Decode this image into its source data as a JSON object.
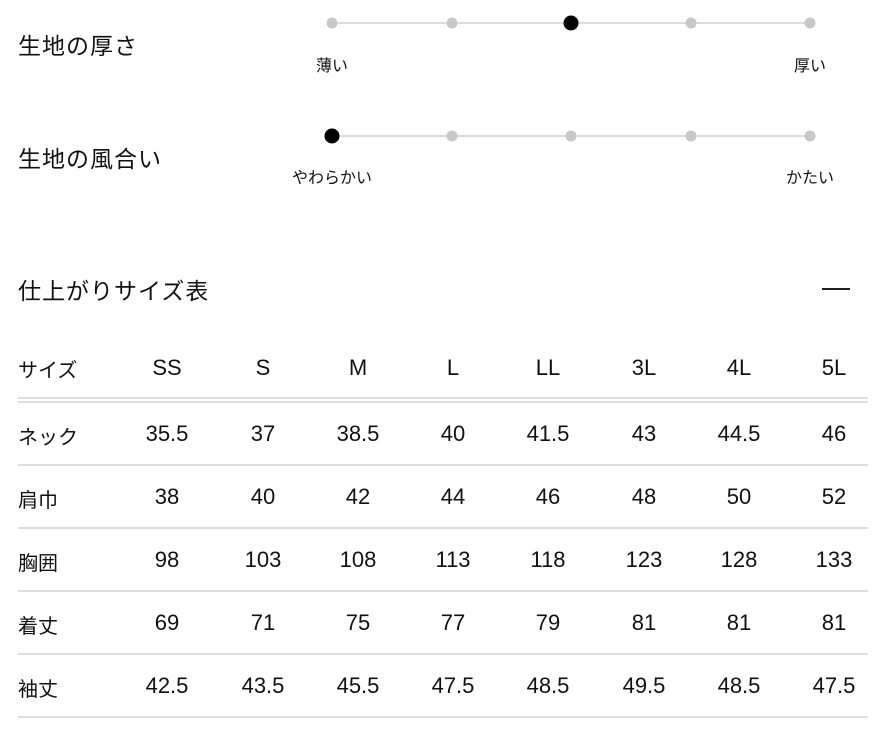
{
  "fabric": [
    {
      "title": "生地の厚さ",
      "min_label": "薄い",
      "max_label": "厚い",
      "steps": 5,
      "selected": 3
    },
    {
      "title": "生地の風合い",
      "min_label": "やわらかい",
      "max_label": "かたい",
      "steps": 5,
      "selected": 1
    }
  ],
  "size_table": {
    "title": "仕上がりサイズ表",
    "collapse_icon": "minus-icon",
    "header_label": "サイズ",
    "sizes": [
      "SS",
      "S",
      "M",
      "L",
      "LL",
      "3L",
      "4L",
      "5L"
    ],
    "rows": [
      {
        "label": "ネック",
        "values": [
          "35.5",
          "37",
          "38.5",
          "40",
          "41.5",
          "43",
          "44.5",
          "46"
        ]
      },
      {
        "label": "肩巾",
        "values": [
          "38",
          "40",
          "42",
          "44",
          "46",
          "48",
          "50",
          "52"
        ]
      },
      {
        "label": "胸囲",
        "values": [
          "98",
          "103",
          "108",
          "113",
          "118",
          "123",
          "128",
          "133"
        ]
      },
      {
        "label": "着丈",
        "values": [
          "69",
          "71",
          "75",
          "77",
          "79",
          "81",
          "81",
          "81"
        ]
      },
      {
        "label": "袖丈",
        "values": [
          "42.5",
          "43.5",
          "45.5",
          "47.5",
          "48.5",
          "49.5",
          "48.5",
          "47.5"
        ]
      }
    ]
  }
}
